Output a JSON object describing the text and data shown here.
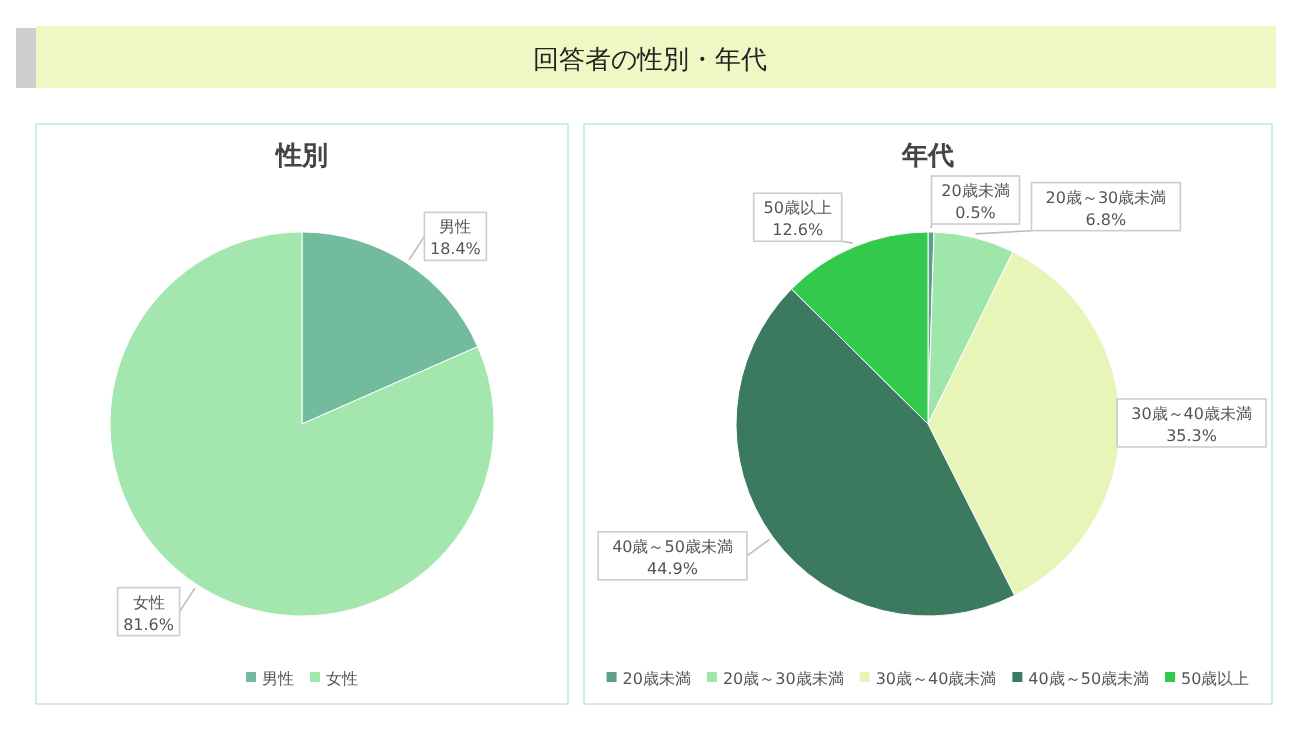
{
  "chart_data": [
    {
      "type": "other",
      "title": "回答者の性別・年代"
    },
    {
      "type": "pie",
      "title": "性別",
      "categories": [
        "男性",
        "女性"
      ],
      "values": [
        18.4,
        81.6
      ],
      "colors": [
        "#72bb9c",
        "#a3e6ae"
      ],
      "value_labels": [
        "18.4%",
        "81.6%"
      ],
      "legend": "bottom"
    },
    {
      "type": "pie",
      "title": "年代",
      "categories": [
        "20歳未満",
        "20歳～30歳未満",
        "30歳～40歳未満",
        "40歳～50歳未満",
        "50歳以上"
      ],
      "values": [
        0.5,
        6.8,
        35.3,
        44.9,
        12.6
      ],
      "colors": [
        "#5e9e8a",
        "#9ee6aa",
        "#e8f5b9",
        "#3b7a5f",
        "#33c94c"
      ],
      "value_labels": [
        "0.5%",
        "6.8%",
        "35.3%",
        "44.9%",
        "12.6%"
      ],
      "legend": "bottom"
    }
  ]
}
